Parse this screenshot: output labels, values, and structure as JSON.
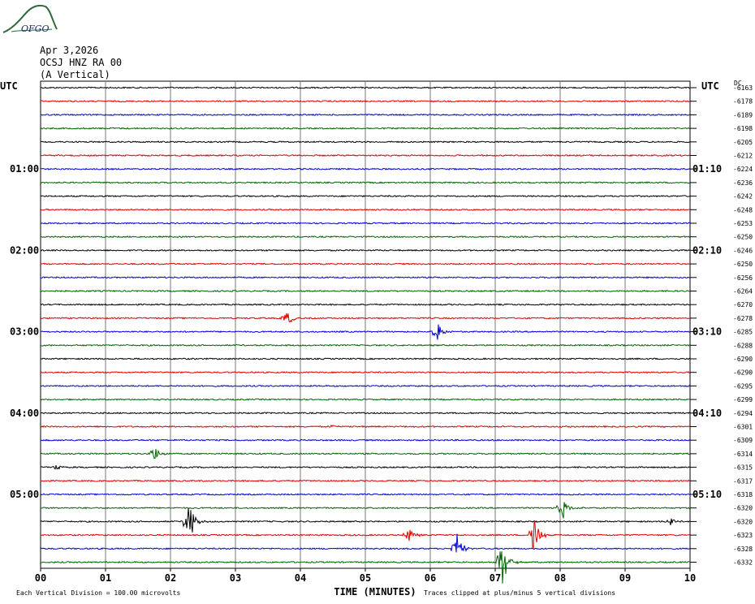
{
  "header": {
    "logo_text": "OFGO",
    "date": "Apr 3,2026",
    "station": "OCSJ HNZ RA 00",
    "component": "(A Vertical)"
  },
  "chart_data": {
    "type": "line",
    "title": "",
    "xlabel": "TIME (MINUTES)",
    "ylabel": "",
    "xlim": [
      0,
      10
    ],
    "x_ticks": [
      "00",
      "01",
      "02",
      "03",
      "04",
      "05",
      "06",
      "07",
      "08",
      "09",
      "10"
    ],
    "left_axis_label": "UTC",
    "right_axis_label": "UTC",
    "dc_label": "DC",
    "left_time_labels": [
      "01:00",
      "02:00",
      "03:00",
      "04:00",
      "05:00"
    ],
    "right_time_labels": [
      "01:10",
      "02:10",
      "03:10",
      "04:10",
      "05:10"
    ],
    "trace_colors": [
      "#000000",
      "#e00000",
      "#0000d8",
      "#006400"
    ],
    "dc_offsets": [
      "-6163",
      "-6178",
      "-6189",
      "-6198",
      "-6205",
      "-6212",
      "-6224",
      "-6236",
      "-6242",
      "-6248",
      "-6253",
      "-6250",
      "-6246",
      "-6250",
      "-6256",
      "-6264",
      "-6270",
      "-6278",
      "-6285",
      "-6288",
      "-6290",
      "-6290",
      "-6295",
      "-6299",
      "-6294",
      "-6301",
      "-6309",
      "-6314",
      "-6315",
      "-6317",
      "-6318",
      "-6320",
      "-6320",
      "-6323",
      "-6328",
      "-6332"
    ],
    "events": [
      {
        "trace": 17,
        "minute": 3.75,
        "amplitude": 0.9
      },
      {
        "trace": 18,
        "minute": 6.07,
        "amplitude": 1.2
      },
      {
        "trace": 25,
        "minute": 4.45,
        "amplitude": 0.2
      },
      {
        "trace": 27,
        "minute": 1.72,
        "amplitude": 0.9
      },
      {
        "trace": 28,
        "minute": 0.2,
        "amplitude": 0.3
      },
      {
        "trace": 31,
        "minute": 8.0,
        "amplitude": 1.2
      },
      {
        "trace": 32,
        "minute": 2.25,
        "amplitude": 2.4
      },
      {
        "trace": 32,
        "minute": 9.65,
        "amplitude": 0.5
      },
      {
        "trace": 33,
        "minute": 5.62,
        "amplitude": 0.9
      },
      {
        "trace": 33,
        "minute": 7.55,
        "amplitude": 2.5
      },
      {
        "trace": 34,
        "minute": 6.37,
        "amplitude": 2.0
      },
      {
        "trace": 35,
        "minute": 7.07,
        "amplitude": 3.0
      }
    ],
    "footer_left": "Each Vertical Division =  100.00 microvolts",
    "footer_right": "Traces clipped at plus/minus 5 vertical divisions"
  }
}
